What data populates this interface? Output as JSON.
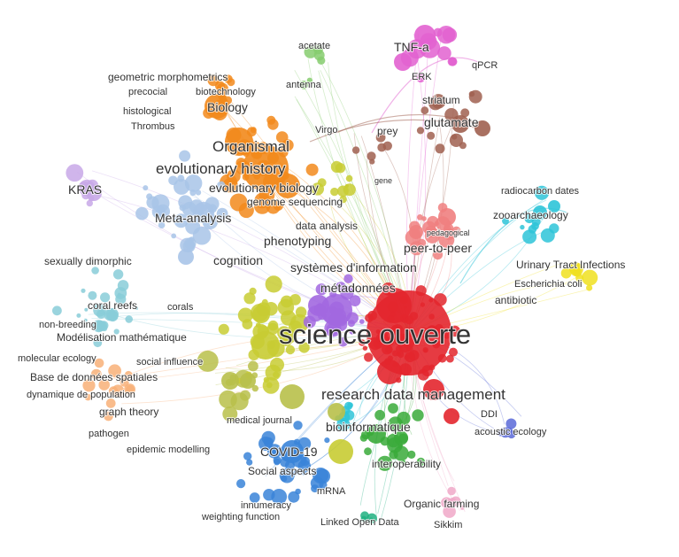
{
  "map": {
    "clusters": {
      "red": "#e3262d",
      "pink": "#f08080",
      "orange": "#f28a1c",
      "brown": "#a06050",
      "magenta": "#e262d0",
      "green_light": "#86cc6e",
      "green": "#3aaa3a",
      "yellow_green": "#c8cc33",
      "olive": "#b8c04a",
      "blue": "#3a84d8",
      "light_blue": "#a8c4e8",
      "purple": "#a268e0",
      "lavender": "#c8a8e8",
      "cyan": "#2ec4d8",
      "teal": "#88ccd8",
      "yellow": "#f0e020",
      "light_orange": "#f8b078",
      "light_pink": "#f0a8c8",
      "emerald": "#20b080",
      "indigo": "#5a6ad8"
    },
    "labels": [
      {
        "text": "science ouverte",
        "size": "xxl"
      },
      {
        "text": "research data management",
        "size": "l"
      },
      {
        "text": "evolutionary history",
        "size": "l"
      },
      {
        "text": "Organismal",
        "size": "l"
      },
      {
        "text": "evolutionary biology",
        "size": "m"
      },
      {
        "text": "COVID-19",
        "size": "m"
      },
      {
        "text": "bioinformatique",
        "size": "m"
      },
      {
        "text": "systèmes d'information",
        "size": "m"
      },
      {
        "text": "métadonnées",
        "size": "m"
      },
      {
        "text": "peer-to-peer",
        "size": "m"
      },
      {
        "text": "data analysis",
        "size": "s"
      },
      {
        "text": "phenotyping",
        "size": "m"
      },
      {
        "text": "cognition",
        "size": "m"
      },
      {
        "text": "Meta-analysis",
        "size": "m"
      },
      {
        "text": "genome sequencing",
        "size": "s"
      },
      {
        "text": "KRAS",
        "size": "m"
      },
      {
        "text": "Biology",
        "size": "m"
      },
      {
        "text": "geometric morphometrics",
        "size": "s"
      },
      {
        "text": "precocial",
        "size": "xs"
      },
      {
        "text": "biotechnology",
        "size": "xs"
      },
      {
        "text": "histological",
        "size": "xs"
      },
      {
        "text": "Thrombus",
        "size": "xs"
      },
      {
        "text": "acetate",
        "size": "xs"
      },
      {
        "text": "antenna",
        "size": "xs"
      },
      {
        "text": "TNF-a",
        "size": "m"
      },
      {
        "text": "ERK",
        "size": "xs"
      },
      {
        "text": "qPCR",
        "size": "xs"
      },
      {
        "text": "striatum",
        "size": "s"
      },
      {
        "text": "glutamate",
        "size": "m"
      },
      {
        "text": "Virgo",
        "size": "xs"
      },
      {
        "text": "prey",
        "size": "s"
      },
      {
        "text": "gene",
        "size": "xxs"
      },
      {
        "text": "pedagogical",
        "size": "xxs"
      },
      {
        "text": "radiocarbon dates",
        "size": "xs"
      },
      {
        "text": "zooarchaeology",
        "size": "s"
      },
      {
        "text": "Urinary Tract Infections",
        "size": "s"
      },
      {
        "text": "Escherichia coli",
        "size": "xs"
      },
      {
        "text": "antibiotic",
        "size": "s"
      },
      {
        "text": "sexually dimorphic",
        "size": "s"
      },
      {
        "text": "coral reefs",
        "size": "s"
      },
      {
        "text": "corals",
        "size": "xs"
      },
      {
        "text": "non-breeding",
        "size": "xs"
      },
      {
        "text": "Modélisation mathématique",
        "size": "s"
      },
      {
        "text": "molecular ecology",
        "size": "xs"
      },
      {
        "text": "social influence",
        "size": "xs"
      },
      {
        "text": "Base de données spatiales",
        "size": "s"
      },
      {
        "text": "dynamique de population",
        "size": "xs"
      },
      {
        "text": "graph theory",
        "size": "s"
      },
      {
        "text": "pathogen",
        "size": "xs"
      },
      {
        "text": "epidemic modelling",
        "size": "xs"
      },
      {
        "text": "medical journal",
        "size": "xs"
      },
      {
        "text": "Social aspects",
        "size": "s"
      },
      {
        "text": "interoperability",
        "size": "s"
      },
      {
        "text": "mRNA",
        "size": "xs"
      },
      {
        "text": "innumeracy",
        "size": "xs"
      },
      {
        "text": "weighting function",
        "size": "xs"
      },
      {
        "text": "Linked Open Data",
        "size": "xs"
      },
      {
        "text": "Organic farming",
        "size": "s"
      },
      {
        "text": "Sikkim",
        "size": "xs"
      },
      {
        "text": "DDI",
        "size": "xs"
      },
      {
        "text": "acoustic ecology",
        "size": "xs"
      }
    ]
  }
}
